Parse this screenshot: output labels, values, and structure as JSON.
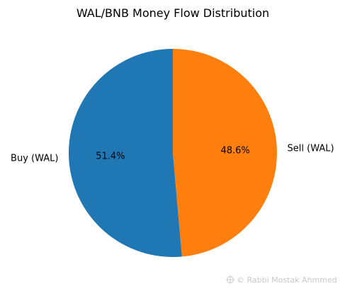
{
  "chart_data": {
    "type": "pie",
    "title": "WAL/BNB Money Flow Distribution",
    "labels": [
      "Buy (WAL)",
      "Sell (WAL)"
    ],
    "values": [
      51.4,
      48.6
    ],
    "percent_labels": [
      "51.4%",
      "48.6%"
    ],
    "colors": [
      "#1f77b4",
      "#ff7f0e"
    ],
    "start_angle": 90,
    "direction": "counterclockwise",
    "legend": "none"
  },
  "watermark": {
    "text": "© Rabbi  Mostak Ahmmed"
  }
}
